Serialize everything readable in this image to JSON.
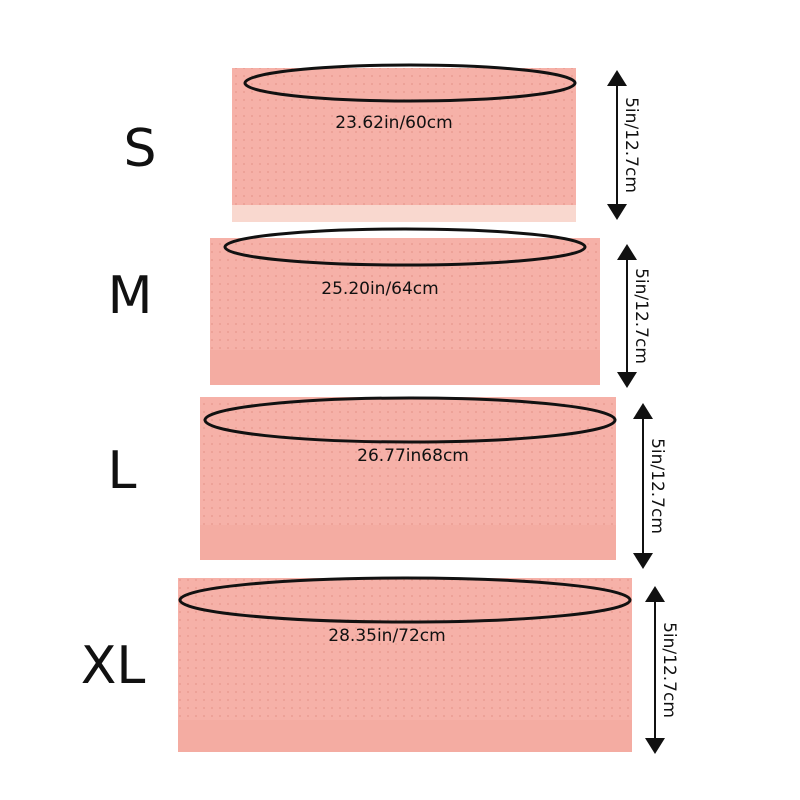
{
  "colors": {
    "fabric": "#f6b1a8",
    "fabric_edge": "#eea59b",
    "ink": "#111111"
  },
  "items": [
    {
      "size": "S",
      "width_label": "23.62in/60cm",
      "height_label": "5in/12.7cm"
    },
    {
      "size": "M",
      "width_label": "25.20in/64cm",
      "height_label": "5in/12.7cm"
    },
    {
      "size": "L",
      "width_label": "26.77in68cm",
      "height_label": "5in/12.7cm"
    },
    {
      "size": "XL",
      "width_label": "28.35in/72cm",
      "height_label": "5in/12.7cm"
    }
  ]
}
